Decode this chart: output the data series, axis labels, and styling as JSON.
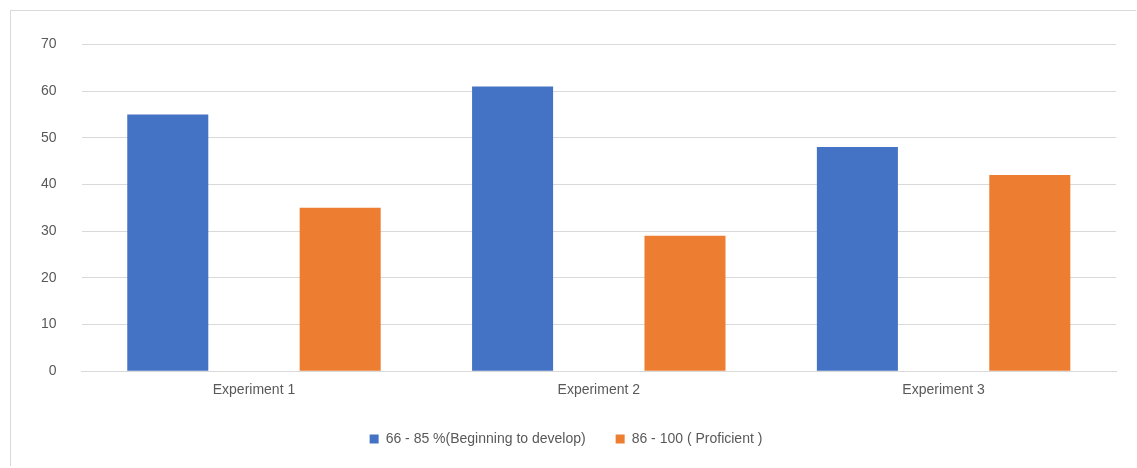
{
  "chart_data": {
    "type": "bar",
    "categories": [
      "Experiment 1",
      "Experiment 2",
      "Experiment 3"
    ],
    "series": [
      {
        "name": "66 - 85 %(Beginning to develop)",
        "color": "#4472c4",
        "values": [
          55,
          61,
          48
        ]
      },
      {
        "name": "86 - 100 ( Proficient )",
        "color": "#ed7d31",
        "values": [
          35,
          29,
          42
        ]
      }
    ],
    "ylim": [
      0,
      70
    ],
    "yticks": [
      0,
      10,
      20,
      30,
      40,
      50,
      60,
      70
    ],
    "grid": "y",
    "legend": "bottom"
  }
}
